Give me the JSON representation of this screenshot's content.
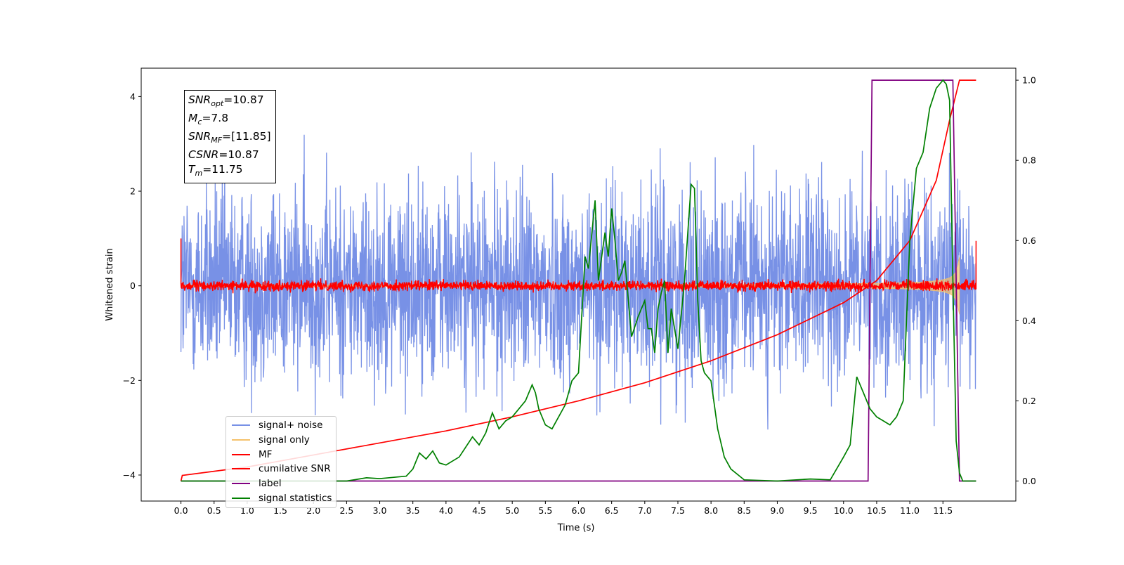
{
  "chart_data": {
    "type": "line",
    "xlabel": "Time (s)",
    "ylabel": "Whitened strain",
    "xlim": [
      -0.6,
      12.6
    ],
    "ylim": [
      -4.55,
      4.6
    ],
    "y2lim": [
      -0.05,
      1.03
    ],
    "x_ticks": [
      "0.0",
      "0.5",
      "1.0",
      "1.5",
      "2.0",
      "2.5",
      "3.0",
      "3.5",
      "4.0",
      "4.5",
      "5.0",
      "5.5",
      "6.0",
      "6.5",
      "7.0",
      "7.5",
      "8.0",
      "8.5",
      "9.0",
      "9.5",
      "10.0",
      "10.5",
      "11.0",
      "11.5"
    ],
    "y_ticks": [
      "−4",
      "−2",
      "0",
      "2",
      "4"
    ],
    "y2_ticks": [
      "0.0",
      "0.2",
      "0.4",
      "0.6",
      "0.8",
      "1.0"
    ],
    "grid": false,
    "legend_position": "lower-left",
    "annotations": {
      "snr_opt": {
        "sym": "SNR",
        "sub": "opt",
        "val": "=10.87"
      },
      "mc": {
        "sym": "M",
        "sub": "c",
        "val": "=7.8"
      },
      "snr_mf": {
        "sym": "SNR",
        "sub": "MF",
        "val": "=[11.85]"
      },
      "csnr": {
        "sym": "CSNR",
        "sub": "",
        "val": "=10.87"
      },
      "tm": {
        "sym": "T",
        "sub": "m",
        "val": "=11.75"
      }
    },
    "series": [
      {
        "name": "signal+ noise",
        "color": "#7891e6",
        "axis": "left",
        "kind": "noise",
        "amplitude": 4.1,
        "x_range": [
          0,
          12.0
        ]
      },
      {
        "name": "signal only",
        "color": "#f5c26b",
        "axis": "left",
        "kind": "chirp",
        "x_range": [
          0,
          11.75
        ],
        "peak_amplitude": 1.7
      },
      {
        "name": "MF",
        "color": "#ff0000",
        "axis": "left",
        "kind": "noise",
        "amplitude": 0.25,
        "x_range": [
          0,
          12.0
        ]
      },
      {
        "name": "cumilative SNR",
        "color": "#ff0000",
        "axis": "right",
        "x": [
          0.0,
          0.02,
          1,
          2,
          3,
          4,
          5,
          6,
          7,
          8,
          9,
          10,
          10.5,
          11,
          11.4,
          11.6,
          11.75,
          12.0
        ],
        "y": [
          0.0,
          0.014,
          0.035,
          0.065,
          0.095,
          0.125,
          0.16,
          0.2,
          0.245,
          0.3,
          0.365,
          0.445,
          0.5,
          0.6,
          0.75,
          0.9,
          1.0,
          1.0
        ]
      },
      {
        "name": "label",
        "color": "#800080",
        "axis": "right",
        "x": [
          0.0,
          10.37,
          10.43,
          11.65,
          11.75,
          12.0
        ],
        "y": [
          0.0,
          0.0,
          1.0,
          1.0,
          0.0,
          0.0
        ]
      },
      {
        "name": "signal statistics",
        "color": "#008000",
        "axis": "right",
        "x": [
          0.0,
          0.5,
          1.0,
          1.5,
          2.0,
          2.5,
          2.8,
          3.0,
          3.2,
          3.4,
          3.5,
          3.6,
          3.7,
          3.8,
          3.9,
          4.0,
          4.2,
          4.4,
          4.5,
          4.6,
          4.7,
          4.8,
          4.9,
          5.0,
          5.1,
          5.2,
          5.3,
          5.35,
          5.4,
          5.5,
          5.6,
          5.7,
          5.8,
          5.9,
          6.0,
          6.1,
          6.15,
          6.25,
          6.3,
          6.35,
          6.4,
          6.45,
          6.5,
          6.55,
          6.6,
          6.65,
          6.7,
          6.8,
          6.9,
          7.0,
          7.05,
          7.1,
          7.15,
          7.2,
          7.25,
          7.3,
          7.35,
          7.4,
          7.5,
          7.6,
          7.7,
          7.75,
          7.8,
          7.85,
          7.9,
          8.0,
          8.1,
          8.2,
          8.3,
          8.5,
          9.0,
          9.5,
          9.8,
          10.0,
          10.1,
          10.2,
          10.3,
          10.4,
          10.5,
          10.6,
          10.7,
          10.8,
          10.9,
          11.0,
          11.1,
          11.2,
          11.3,
          11.4,
          11.5,
          11.55,
          11.6,
          11.65,
          11.7,
          11.75,
          11.8,
          11.9,
          12.0
        ],
        "y": [
          0.0,
          0.0,
          0.0,
          0.0,
          0.0,
          0.0,
          0.008,
          0.006,
          0.009,
          0.012,
          0.03,
          0.07,
          0.055,
          0.075,
          0.045,
          0.04,
          0.06,
          0.11,
          0.09,
          0.12,
          0.17,
          0.13,
          0.15,
          0.16,
          0.18,
          0.2,
          0.24,
          0.22,
          0.18,
          0.14,
          0.13,
          0.16,
          0.19,
          0.25,
          0.27,
          0.56,
          0.53,
          0.7,
          0.5,
          0.56,
          0.62,
          0.56,
          0.68,
          0.6,
          0.5,
          0.52,
          0.55,
          0.36,
          0.41,
          0.45,
          0.38,
          0.38,
          0.32,
          0.43,
          0.47,
          0.5,
          0.32,
          0.43,
          0.33,
          0.5,
          0.74,
          0.73,
          0.45,
          0.3,
          0.27,
          0.25,
          0.13,
          0.06,
          0.03,
          0.003,
          0.0,
          0.005,
          0.003,
          0.06,
          0.09,
          0.26,
          0.22,
          0.18,
          0.16,
          0.15,
          0.14,
          0.16,
          0.2,
          0.6,
          0.78,
          0.82,
          0.93,
          0.98,
          1.0,
          0.99,
          0.95,
          0.5,
          0.1,
          0.02,
          0.0,
          0.0,
          0.0
        ]
      }
    ]
  }
}
